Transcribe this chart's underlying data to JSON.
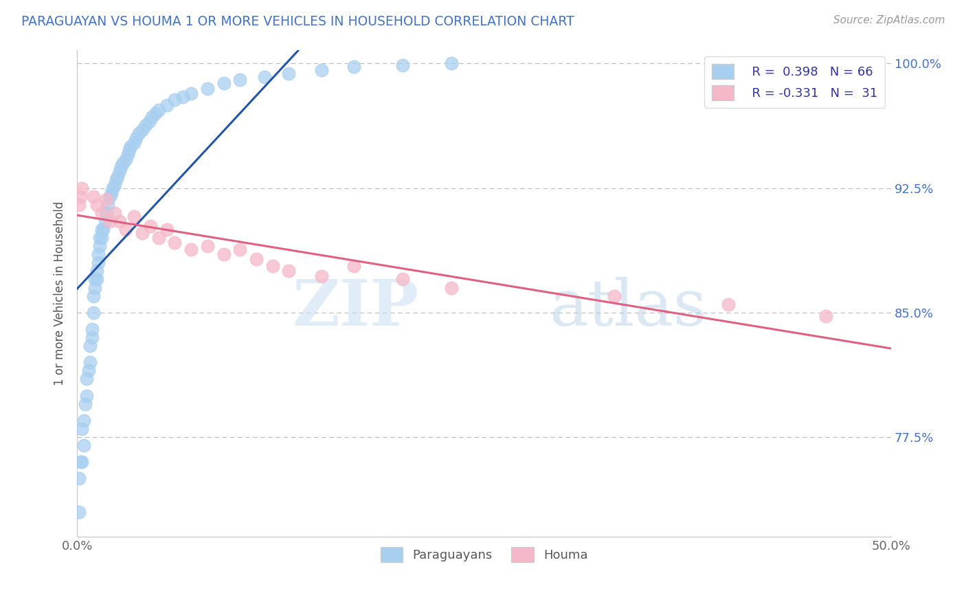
{
  "title": "PARAGUAYAN VS HOUMA 1 OR MORE VEHICLES IN HOUSEHOLD CORRELATION CHART",
  "source": "Source: ZipAtlas.com",
  "ylabel": "1 or more Vehicles in Household",
  "watermark_zip": "ZIP",
  "watermark_atlas": "atlas",
  "x_min": 0.0,
  "x_max": 0.5,
  "y_min": 0.715,
  "y_max": 1.008,
  "x_tick_positions": [
    0.0,
    0.1,
    0.2,
    0.3,
    0.4,
    0.5
  ],
  "x_tick_labels": [
    "0.0%",
    "",
    "",
    "",
    "",
    "50.0%"
  ],
  "y_ticks": [
    0.775,
    0.85,
    0.925,
    1.0
  ],
  "y_tick_labels": [
    "77.5%",
    "85.0%",
    "92.5%",
    "100.0%"
  ],
  "legend_r1": "R =  0.398",
  "legend_n1": "N = 66",
  "legend_r2": "R = -0.331",
  "legend_n2": "N =  31",
  "color_paraguayan": "#a8cff0",
  "color_houma": "#f5b8c8",
  "line_color_paraguayan": "#2255aa",
  "line_color_houma": "#e06080",
  "paraguayan_x": [
    0.001,
    0.001,
    0.002,
    0.003,
    0.003,
    0.004,
    0.004,
    0.005,
    0.006,
    0.006,
    0.007,
    0.008,
    0.008,
    0.009,
    0.009,
    0.01,
    0.01,
    0.011,
    0.011,
    0.012,
    0.012,
    0.013,
    0.013,
    0.014,
    0.014,
    0.015,
    0.015,
    0.016,
    0.017,
    0.018,
    0.019,
    0.02,
    0.021,
    0.022,
    0.023,
    0.024,
    0.025,
    0.026,
    0.027,
    0.028,
    0.03,
    0.031,
    0.032,
    0.033,
    0.035,
    0.036,
    0.038,
    0.04,
    0.042,
    0.044,
    0.046,
    0.048,
    0.05,
    0.055,
    0.06,
    0.065,
    0.07,
    0.08,
    0.09,
    0.1,
    0.115,
    0.13,
    0.15,
    0.17,
    0.2,
    0.23
  ],
  "paraguayan_y": [
    0.73,
    0.75,
    0.76,
    0.76,
    0.78,
    0.77,
    0.785,
    0.795,
    0.8,
    0.81,
    0.815,
    0.82,
    0.83,
    0.835,
    0.84,
    0.85,
    0.86,
    0.865,
    0.87,
    0.87,
    0.875,
    0.88,
    0.885,
    0.89,
    0.895,
    0.895,
    0.9,
    0.9,
    0.905,
    0.91,
    0.915,
    0.92,
    0.922,
    0.925,
    0.927,
    0.93,
    0.932,
    0.935,
    0.938,
    0.94,
    0.942,
    0.945,
    0.948,
    0.95,
    0.952,
    0.955,
    0.958,
    0.96,
    0.963,
    0.965,
    0.968,
    0.97,
    0.972,
    0.975,
    0.978,
    0.98,
    0.982,
    0.985,
    0.988,
    0.99,
    0.992,
    0.994,
    0.996,
    0.998,
    0.999,
    1.0
  ],
  "houma_x": [
    0.001,
    0.002,
    0.003,
    0.01,
    0.012,
    0.015,
    0.018,
    0.02,
    0.023,
    0.026,
    0.03,
    0.035,
    0.04,
    0.045,
    0.05,
    0.055,
    0.06,
    0.07,
    0.08,
    0.09,
    0.1,
    0.11,
    0.12,
    0.13,
    0.15,
    0.17,
    0.2,
    0.23,
    0.33,
    0.4,
    0.46
  ],
  "houma_y": [
    0.915,
    0.92,
    0.925,
    0.92,
    0.915,
    0.91,
    0.918,
    0.905,
    0.91,
    0.905,
    0.9,
    0.908,
    0.898,
    0.902,
    0.895,
    0.9,
    0.892,
    0.888,
    0.89,
    0.885,
    0.888,
    0.882,
    0.878,
    0.875,
    0.872,
    0.878,
    0.87,
    0.865,
    0.86,
    0.855,
    0.848
  ]
}
